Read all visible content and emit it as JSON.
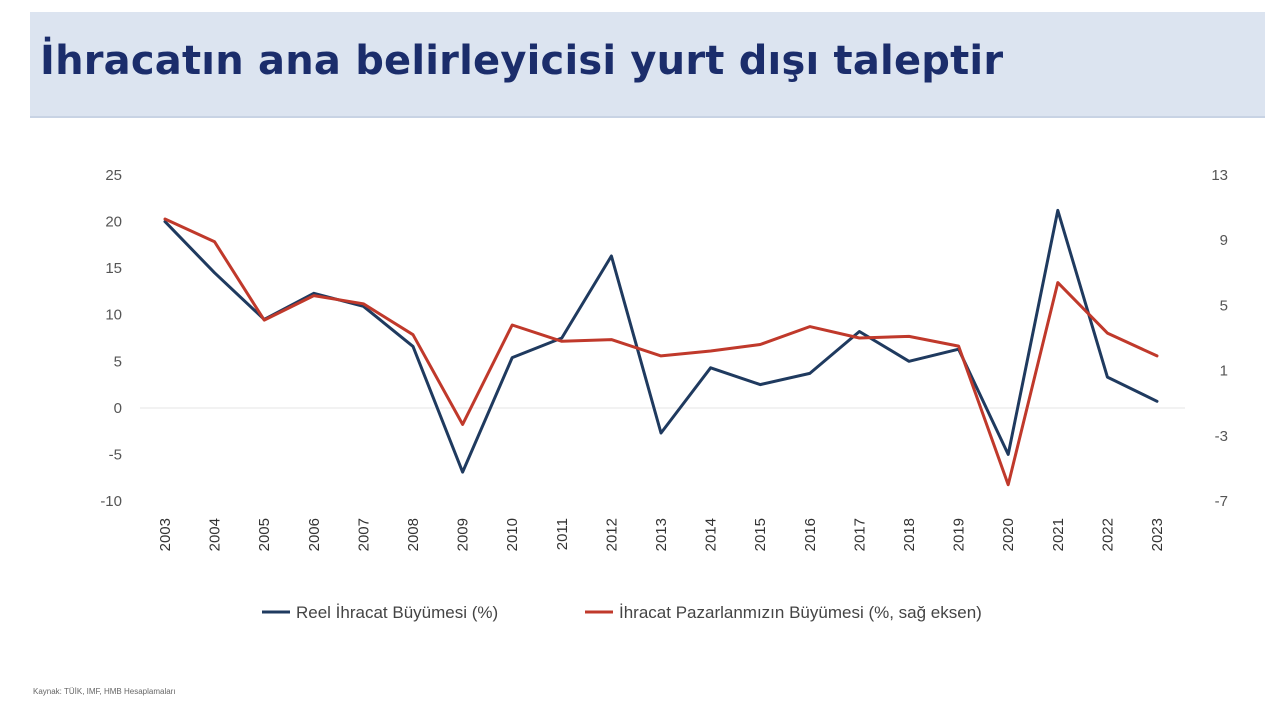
{
  "header": {
    "title": "İhracatın ana belirleyicisi yurt dışı taleptir"
  },
  "chart_data": {
    "type": "line",
    "title": "",
    "categories": [
      "2003",
      "2004",
      "2005",
      "2006",
      "2007",
      "2008",
      "2009",
      "2010",
      "2011",
      "2012",
      "2013",
      "2014",
      "2015",
      "2016",
      "2017",
      "2018",
      "2019",
      "2020",
      "2021",
      "2022",
      "2023"
    ],
    "y_left": {
      "ticks": [
        25,
        20,
        15,
        10,
        5,
        0,
        -5,
        -10
      ],
      "ylim": [
        -10,
        25
      ]
    },
    "y_right": {
      "ticks": [
        13,
        9,
        5,
        1,
        -3,
        -7
      ],
      "ylim": [
        -7,
        13
      ]
    },
    "grid": false,
    "legend_position": "bottom",
    "series": [
      {
        "name": "Reel İhracat Büyümesi (%)",
        "axis": "left",
        "color": "#1f3a5f",
        "values": [
          20.0,
          14.5,
          9.5,
          12.3,
          10.9,
          6.6,
          -6.9,
          5.4,
          7.5,
          16.3,
          -2.7,
          4.3,
          2.5,
          3.7,
          8.2,
          5.0,
          6.3,
          -5.0,
          21.2,
          3.3,
          0.7
        ]
      },
      {
        "name": "İhracat Pazarlanmızın Büyümesi (%, sağ eksen)",
        "axis": "right",
        "color": "#c0392b",
        "values": [
          10.3,
          8.9,
          4.1,
          5.6,
          5.1,
          3.2,
          -2.3,
          3.8,
          2.8,
          2.9,
          1.9,
          2.2,
          2.6,
          3.7,
          3.0,
          3.1,
          2.5,
          -6.0,
          6.4,
          3.3,
          1.9
        ]
      }
    ]
  },
  "source": "Kaynak: TÜİK, IMF, HMB Hesaplamaları"
}
